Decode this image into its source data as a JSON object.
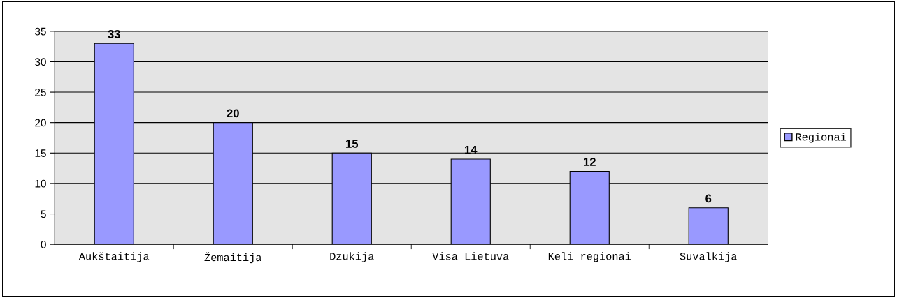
{
  "chart_data": {
    "type": "bar",
    "categories": [
      "Aukštaitija",
      "Žemaitija",
      "Dzūkija",
      "Visa Lietuva",
      "Keli regionai",
      "Suvalkija"
    ],
    "series": [
      {
        "name": "Regionai",
        "color": "#9999ff",
        "values": [
          33,
          20,
          15,
          14,
          12,
          6
        ]
      }
    ],
    "ylim": [
      0,
      35
    ],
    "yticks": [
      0,
      5,
      10,
      15,
      20,
      25,
      30,
      35
    ],
    "grid": "y",
    "legend": "right",
    "data_labels": true
  }
}
